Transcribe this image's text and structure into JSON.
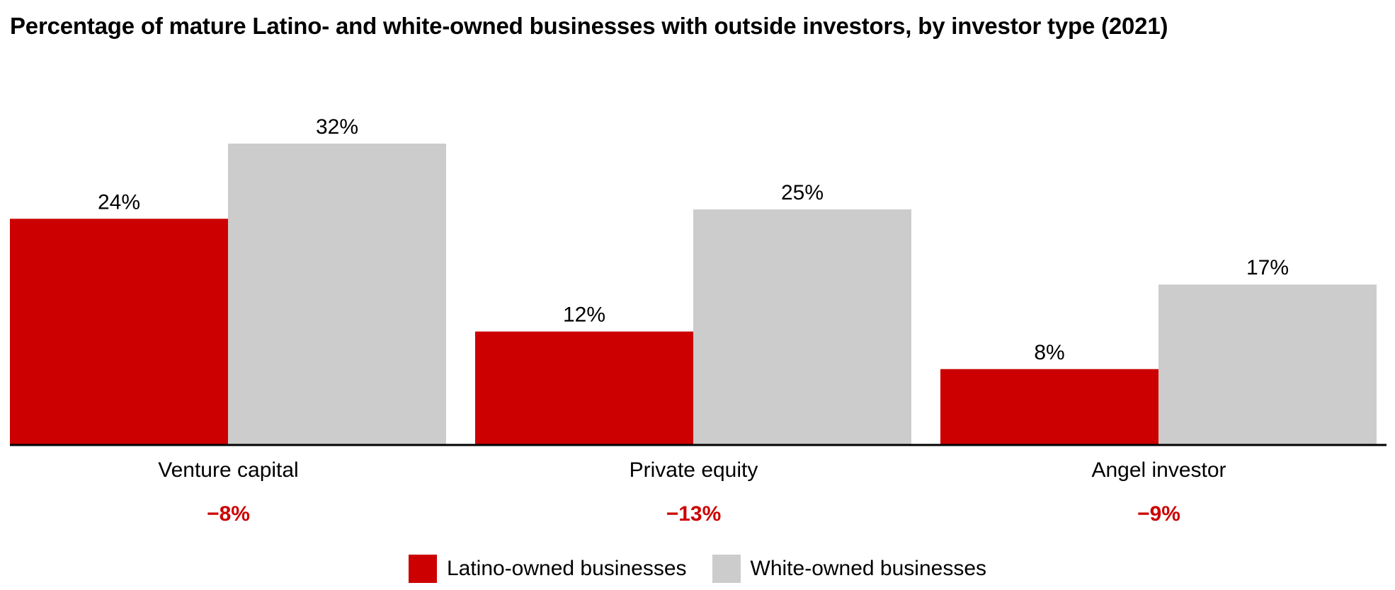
{
  "chart_data": {
    "type": "bar",
    "title": "Percentage of mature Latino- and white-owned businesses with outside investors, by investor type (2021)",
    "categories": [
      "Venture capital",
      "Private equity",
      "Angel investor"
    ],
    "series": [
      {
        "name": "Latino-owned businesses",
        "values": [
          24,
          12,
          8
        ],
        "value_labels": [
          "24%",
          "12%",
          "8%"
        ],
        "color": "#cc0000"
      },
      {
        "name": "White-owned businesses",
        "values": [
          32,
          25,
          17
        ],
        "value_labels": [
          "32%",
          "25%",
          "17%"
        ],
        "color": "#cccccc"
      }
    ],
    "differences": [
      "−8%",
      "−13%",
      "−9%"
    ],
    "difference_color": "#cc0000",
    "ylim": [
      0,
      32
    ],
    "grid": false,
    "legend_position": "bottom-center",
    "axis_color": "#000000"
  }
}
